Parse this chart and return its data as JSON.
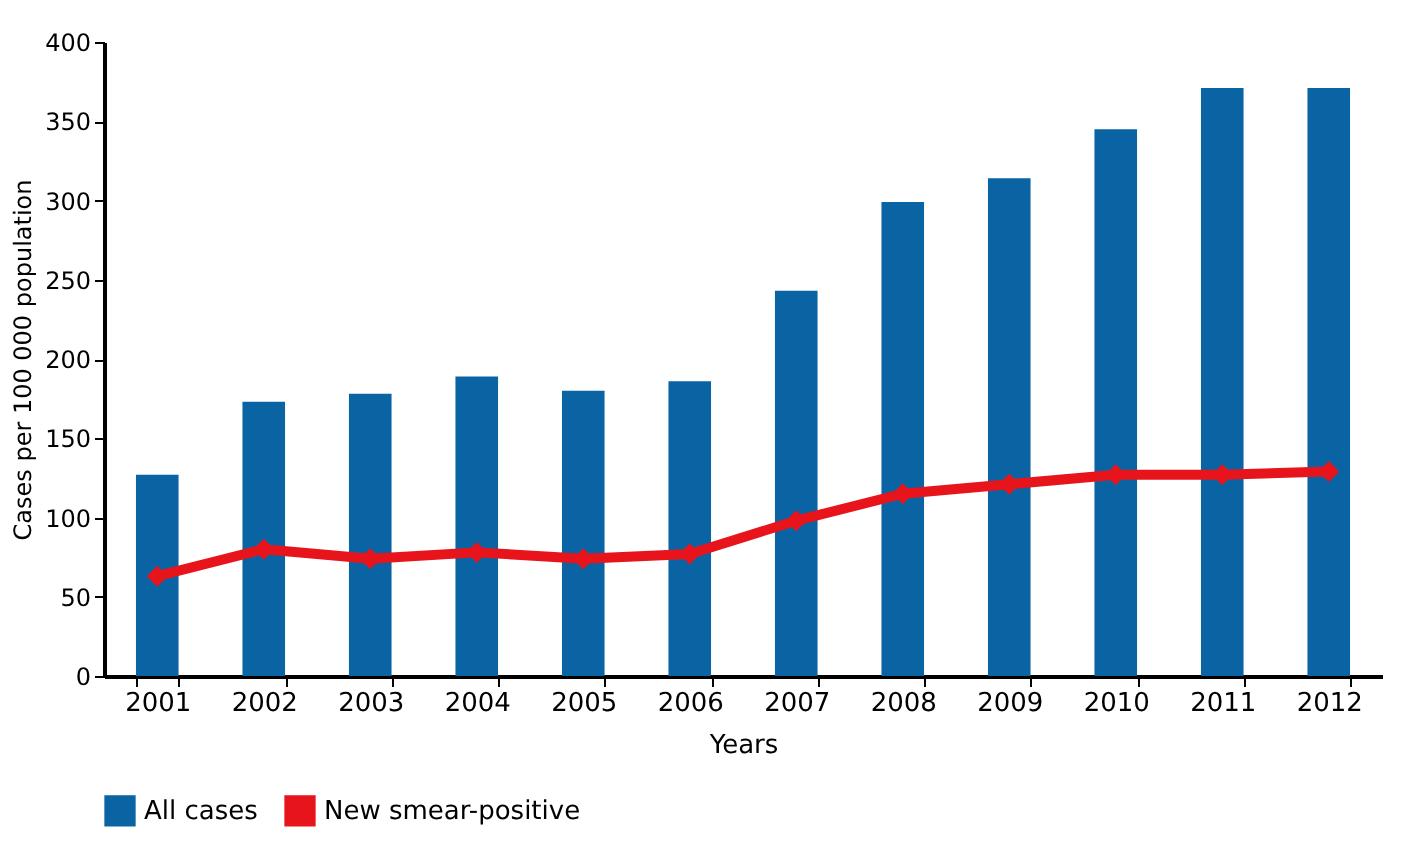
{
  "chart_data": {
    "type": "bar",
    "xlabel": "Years",
    "ylabel": "Cases per 100 000 population",
    "categories": [
      "2001",
      "2002",
      "2003",
      "2004",
      "2005",
      "2006",
      "2007",
      "2008",
      "2009",
      "2010",
      "2011",
      "2012"
    ],
    "series": [
      {
        "name": "All cases",
        "color": "#0a64a4",
        "values": [
          127,
          173,
          178,
          189,
          180,
          186,
          243,
          299,
          314,
          345,
          371,
          371
        ]
      },
      {
        "name": "New smear-positive",
        "color": "#e8141c",
        "type": "line",
        "marker": "diamond",
        "values": [
          63,
          80,
          74,
          78,
          74,
          77,
          98,
          115,
          121,
          127,
          127,
          129
        ]
      }
    ],
    "ylim": [
      0,
      400
    ],
    "yticks": [
      0,
      50,
      100,
      150,
      200,
      250,
      300,
      350,
      400
    ],
    "grid": false,
    "legend": "bottom"
  }
}
